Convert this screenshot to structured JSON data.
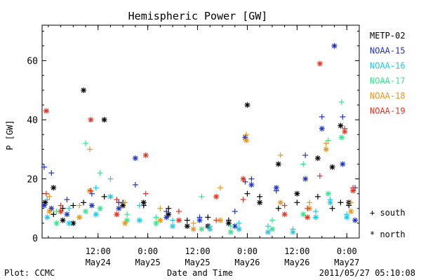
{
  "chart_data": {
    "type": "scatter",
    "title": "Hemispheric Power [GW]",
    "ylabel": "P [GW]",
    "xlabel": "Date and Time",
    "ylim": [
      0,
      72
    ],
    "yticks": [
      0,
      20,
      40,
      60
    ],
    "xlim": [
      "2011-05-23T22:30",
      "2011-05-27T03:00"
    ],
    "xticks": [
      {
        "at": "2011-05-24T12:00",
        "line1": "12:00",
        "line2": "May24"
      },
      {
        "at": "2011-05-25T00:00",
        "line1": "0:00",
        "line2": "May25"
      },
      {
        "at": "2011-05-25T12:00",
        "line1": "12:00",
        "line2": "May25"
      },
      {
        "at": "2011-05-26T00:00",
        "line1": "0:00",
        "line2": "May26"
      },
      {
        "at": "2011-05-26T12:00",
        "line1": "12:00",
        "line2": "May26"
      },
      {
        "at": "2011-05-27T00:00",
        "line1": "0:00",
        "line2": "May27"
      }
    ],
    "footer_left": "Plot: CCMC",
    "footer_right": "2011/05/27 05:10:08",
    "marker_legend": [
      {
        "symbol": "+",
        "label": "south"
      },
      {
        "symbol": "*",
        "label": "north"
      }
    ],
    "series": [
      {
        "name": "METP-02",
        "color": "#000000",
        "points": [
          {
            "t": "2011-05-23T23:15",
            "south": 12,
            "north": 12
          },
          {
            "t": "2011-05-24T01:15",
            "south": 8,
            "north": 17
          },
          {
            "t": "2011-05-24T03:30",
            "south": 10,
            "north": 6
          },
          {
            "t": "2011-05-24T06:00",
            "south": 11,
            "north": 5
          },
          {
            "t": "2011-05-24T08:30",
            "south": 12,
            "north": 50
          },
          {
            "t": "2011-05-24T13:30",
            "south": 14,
            "north": 40
          },
          {
            "t": "2011-05-24T18:00",
            "south": 12,
            "north": 11
          },
          {
            "t": "2011-05-24T23:00",
            "south": 11,
            "north": 12
          },
          {
            "t": "2011-05-25T05:00",
            "south": 10,
            "north": 8
          },
          {
            "t": "2011-05-25T09:30",
            "south": 6,
            "north": 4
          },
          {
            "t": "2011-05-25T14:30",
            "south": 7,
            "north": 4
          },
          {
            "t": "2011-05-25T19:30",
            "south": 6,
            "north": 5
          },
          {
            "t": "2011-05-26T00:00",
            "south": 15,
            "north": 45
          },
          {
            "t": "2011-05-26T03:00",
            "south": 14,
            "north": 12
          },
          {
            "t": "2011-05-26T07:30",
            "south": 10,
            "north": 25
          },
          {
            "t": "2011-05-26T12:00",
            "south": 12,
            "north": 15
          },
          {
            "t": "2011-05-26T17:00",
            "south": 14,
            "north": 27
          },
          {
            "t": "2011-05-26T20:30",
            "south": 10,
            "north": 24
          },
          {
            "t": "2011-05-26T22:30",
            "south": 12,
            "north": 38
          },
          {
            "t": "2011-05-27T00:30",
            "south": 11,
            "north": 12
          }
        ]
      },
      {
        "name": "NOAA-15",
        "color": "#1f32c8",
        "points": [
          {
            "t": "2011-05-23T23:00",
            "south": 24,
            "north": 11
          },
          {
            "t": "2011-05-24T00:45",
            "south": 22,
            "north": 10
          },
          {
            "t": "2011-05-24T04:30",
            "south": 13,
            "north": 8
          },
          {
            "t": "2011-05-24T10:30",
            "south": 15,
            "north": 11
          },
          {
            "t": "2011-05-24T17:00",
            "south": 12,
            "north": 10
          },
          {
            "t": "2011-05-24T21:00",
            "south": 18,
            "north": 27
          },
          {
            "t": "2011-05-25T04:30",
            "south": 9,
            "north": 7
          },
          {
            "t": "2011-05-25T12:30",
            "south": 7,
            "north": 6
          },
          {
            "t": "2011-05-25T21:00",
            "south": 9,
            "north": 4
          },
          {
            "t": "2011-05-25T23:30",
            "south": 19,
            "north": 34
          },
          {
            "t": "2011-05-26T01:00",
            "south": 20,
            "north": 18
          },
          {
            "t": "2011-05-26T07:00",
            "south": 16,
            "north": 17
          },
          {
            "t": "2011-05-26T14:00",
            "south": 28,
            "north": 20
          },
          {
            "t": "2011-05-26T18:00",
            "south": 41,
            "north": 37
          },
          {
            "t": "2011-05-26T21:00",
            "south": 65,
            "north": 65
          },
          {
            "t": "2011-05-26T23:00",
            "south": 41,
            "north": 25
          },
          {
            "t": "2011-05-27T02:00",
            "south": 17,
            "north": 6
          }
        ]
      },
      {
        "name": "NOAA-16",
        "color": "#1fc8e6",
        "points": [
          {
            "t": "2011-05-23T23:45",
            "south": 13,
            "north": 7
          },
          {
            "t": "2011-05-24T05:00",
            "south": 10,
            "north": 5
          },
          {
            "t": "2011-05-24T11:30",
            "south": 17,
            "north": 8
          },
          {
            "t": "2011-05-24T15:00",
            "south": 20,
            "north": 14
          },
          {
            "t": "2011-05-24T22:00",
            "south": 11,
            "north": 6
          },
          {
            "t": "2011-05-25T06:00",
            "south": 6,
            "north": 4
          },
          {
            "t": "2011-05-25T15:00",
            "south": 4,
            "north": 3
          },
          {
            "t": "2011-05-25T22:00",
            "south": 5,
            "north": 3
          },
          {
            "t": "2011-05-26T05:00",
            "south": 4,
            "north": 2
          },
          {
            "t": "2011-05-26T11:00",
            "south": 3,
            "north": 2
          },
          {
            "t": "2011-05-26T16:30",
            "south": 9,
            "north": 7
          },
          {
            "t": "2011-05-26T20:00",
            "south": 13,
            "north": 12
          },
          {
            "t": "2011-05-27T00:00",
            "south": 8,
            "north": 7
          }
        ]
      },
      {
        "name": "NOAA-17",
        "color": "#32e68c",
        "points": [
          {
            "t": "2011-05-24T02:00",
            "south": 9,
            "north": 5
          },
          {
            "t": "2011-05-24T09:00",
            "south": 32,
            "north": 9
          },
          {
            "t": "2011-05-24T12:30",
            "south": 22,
            "north": 10
          },
          {
            "t": "2011-05-24T19:00",
            "south": 8,
            "north": 6
          },
          {
            "t": "2011-05-25T02:00",
            "south": 7,
            "north": 5
          },
          {
            "t": "2011-05-25T13:00",
            "south": 14,
            "north": 3
          },
          {
            "t": "2011-05-25T20:00",
            "south": 4,
            "north": 2
          },
          {
            "t": "2011-05-26T06:00",
            "south": 6,
            "north": 3
          },
          {
            "t": "2011-05-26T13:30",
            "south": 25,
            "north": 8
          },
          {
            "t": "2011-05-26T19:30",
            "south": 33,
            "north": 15
          },
          {
            "t": "2011-05-26T22:45",
            "south": 46,
            "north": 34
          }
        ]
      },
      {
        "name": "NOAA-18",
        "color": "#e6961e",
        "points": [
          {
            "t": "2011-05-24T00:15",
            "south": 14,
            "north": 9
          },
          {
            "t": "2011-05-24T07:30",
            "south": 11,
            "north": 7
          },
          {
            "t": "2011-05-24T10:00",
            "south": 30,
            "north": 16
          },
          {
            "t": "2011-05-24T18:30",
            "south": 12,
            "north": 5
          },
          {
            "t": "2011-05-25T03:00",
            "south": 10,
            "north": 6
          },
          {
            "t": "2011-05-25T11:00",
            "south": 5,
            "north": 3
          },
          {
            "t": "2011-05-25T17:30",
            "south": 17,
            "north": 6
          },
          {
            "t": "2011-05-25T23:45",
            "south": 35,
            "north": 33
          },
          {
            "t": "2011-05-26T08:00",
            "south": 28,
            "north": 12
          },
          {
            "t": "2011-05-26T15:00",
            "south": 12,
            "north": 10
          },
          {
            "t": "2011-05-26T19:00",
            "south": 32,
            "north": 30
          },
          {
            "t": "2011-05-27T01:00",
            "south": 12,
            "north": 9
          }
        ]
      },
      {
        "name": "NOAA-19",
        "color": "#e6321e",
        "points": [
          {
            "t": "2011-05-23T23:30",
            "south": 15,
            "north": 43
          },
          {
            "t": "2011-05-24T03:00",
            "south": 11,
            "north": 9
          },
          {
            "t": "2011-05-24T10:15",
            "south": 16,
            "north": 40
          },
          {
            "t": "2011-05-24T16:30",
            "south": 13,
            "north": 8
          },
          {
            "t": "2011-05-24T23:30",
            "south": 15,
            "north": 28
          },
          {
            "t": "2011-05-25T07:30",
            "south": 9,
            "north": 6
          },
          {
            "t": "2011-05-25T16:30",
            "south": 6,
            "north": 14
          },
          {
            "t": "2011-05-25T23:00",
            "south": 13,
            "north": 20
          },
          {
            "t": "2011-05-26T09:00",
            "south": 11,
            "north": 8
          },
          {
            "t": "2011-05-26T14:30",
            "south": 10,
            "north": 7
          },
          {
            "t": "2011-05-26T17:30",
            "south": 21,
            "north": 59
          },
          {
            "t": "2011-05-26T23:30",
            "south": 37,
            "north": 36
          },
          {
            "t": "2011-05-27T01:30",
            "south": 17,
            "north": 16
          }
        ]
      }
    ]
  }
}
